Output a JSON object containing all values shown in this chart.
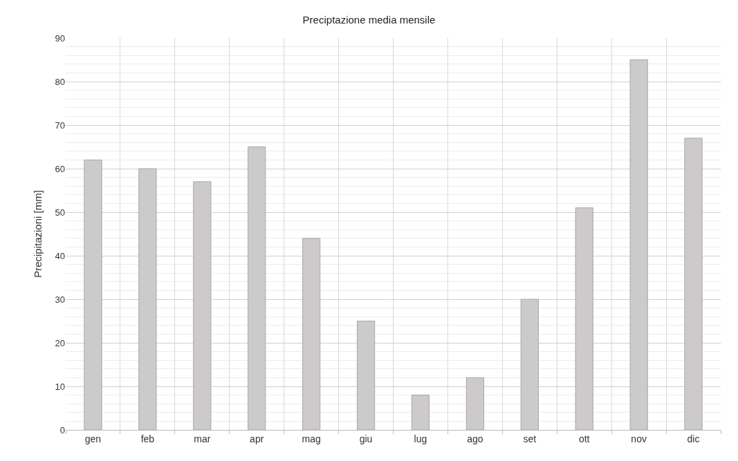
{
  "chart_data": {
    "type": "bar",
    "title": "Preciptazione media mensile",
    "ylabel": "Precipitazioni [mm]",
    "categories": [
      "gen",
      "feb",
      "mar",
      "apr",
      "mag",
      "giu",
      "lug",
      "ago",
      "set",
      "ott",
      "nov",
      "dic"
    ],
    "values": [
      62,
      60,
      57,
      65,
      44,
      25,
      8,
      12,
      30,
      51,
      85,
      67
    ],
    "color": "#cccaca",
    "ylim": [
      0,
      90
    ],
    "yticks": [
      0,
      10,
      20,
      30,
      40,
      50,
      60,
      70,
      80,
      90
    ],
    "grid": true
  }
}
